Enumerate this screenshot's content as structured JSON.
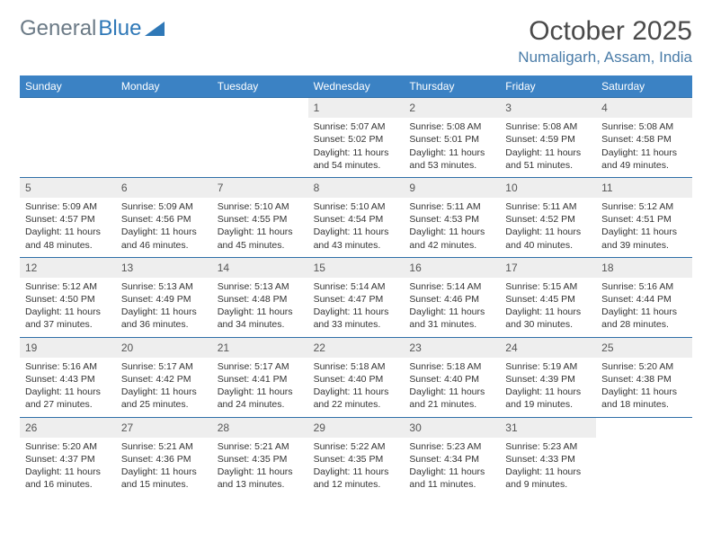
{
  "logo": {
    "text1": "General",
    "text2": "Blue"
  },
  "title": "October 2025",
  "location": "Numaligarh, Assam, India",
  "colors": {
    "header_bg": "#3b82c4",
    "header_text": "#ffffff",
    "daynum_bg": "#eeeeee",
    "daynum_border": "#2f6fa8",
    "logo_gray": "#6b7a86",
    "logo_blue": "#2f78b7",
    "location_color": "#4a7ca8",
    "title_color": "#4a4a4a",
    "text_color": "#333333"
  },
  "day_names": [
    "Sunday",
    "Monday",
    "Tuesday",
    "Wednesday",
    "Thursday",
    "Friday",
    "Saturday"
  ],
  "weeks": [
    [
      null,
      null,
      null,
      {
        "n": "1",
        "sr": "5:07 AM",
        "ss": "5:02 PM",
        "dl": "11 hours and 54 minutes."
      },
      {
        "n": "2",
        "sr": "5:08 AM",
        "ss": "5:01 PM",
        "dl": "11 hours and 53 minutes."
      },
      {
        "n": "3",
        "sr": "5:08 AM",
        "ss": "4:59 PM",
        "dl": "11 hours and 51 minutes."
      },
      {
        "n": "4",
        "sr": "5:08 AM",
        "ss": "4:58 PM",
        "dl": "11 hours and 49 minutes."
      }
    ],
    [
      {
        "n": "5",
        "sr": "5:09 AM",
        "ss": "4:57 PM",
        "dl": "11 hours and 48 minutes."
      },
      {
        "n": "6",
        "sr": "5:09 AM",
        "ss": "4:56 PM",
        "dl": "11 hours and 46 minutes."
      },
      {
        "n": "7",
        "sr": "5:10 AM",
        "ss": "4:55 PM",
        "dl": "11 hours and 45 minutes."
      },
      {
        "n": "8",
        "sr": "5:10 AM",
        "ss": "4:54 PM",
        "dl": "11 hours and 43 minutes."
      },
      {
        "n": "9",
        "sr": "5:11 AM",
        "ss": "4:53 PM",
        "dl": "11 hours and 42 minutes."
      },
      {
        "n": "10",
        "sr": "5:11 AM",
        "ss": "4:52 PM",
        "dl": "11 hours and 40 minutes."
      },
      {
        "n": "11",
        "sr": "5:12 AM",
        "ss": "4:51 PM",
        "dl": "11 hours and 39 minutes."
      }
    ],
    [
      {
        "n": "12",
        "sr": "5:12 AM",
        "ss": "4:50 PM",
        "dl": "11 hours and 37 minutes."
      },
      {
        "n": "13",
        "sr": "5:13 AM",
        "ss": "4:49 PM",
        "dl": "11 hours and 36 minutes."
      },
      {
        "n": "14",
        "sr": "5:13 AM",
        "ss": "4:48 PM",
        "dl": "11 hours and 34 minutes."
      },
      {
        "n": "15",
        "sr": "5:14 AM",
        "ss": "4:47 PM",
        "dl": "11 hours and 33 minutes."
      },
      {
        "n": "16",
        "sr": "5:14 AM",
        "ss": "4:46 PM",
        "dl": "11 hours and 31 minutes."
      },
      {
        "n": "17",
        "sr": "5:15 AM",
        "ss": "4:45 PM",
        "dl": "11 hours and 30 minutes."
      },
      {
        "n": "18",
        "sr": "5:16 AM",
        "ss": "4:44 PM",
        "dl": "11 hours and 28 minutes."
      }
    ],
    [
      {
        "n": "19",
        "sr": "5:16 AM",
        "ss": "4:43 PM",
        "dl": "11 hours and 27 minutes."
      },
      {
        "n": "20",
        "sr": "5:17 AM",
        "ss": "4:42 PM",
        "dl": "11 hours and 25 minutes."
      },
      {
        "n": "21",
        "sr": "5:17 AM",
        "ss": "4:41 PM",
        "dl": "11 hours and 24 minutes."
      },
      {
        "n": "22",
        "sr": "5:18 AM",
        "ss": "4:40 PM",
        "dl": "11 hours and 22 minutes."
      },
      {
        "n": "23",
        "sr": "5:18 AM",
        "ss": "4:40 PM",
        "dl": "11 hours and 21 minutes."
      },
      {
        "n": "24",
        "sr": "5:19 AM",
        "ss": "4:39 PM",
        "dl": "11 hours and 19 minutes."
      },
      {
        "n": "25",
        "sr": "5:20 AM",
        "ss": "4:38 PM",
        "dl": "11 hours and 18 minutes."
      }
    ],
    [
      {
        "n": "26",
        "sr": "5:20 AM",
        "ss": "4:37 PM",
        "dl": "11 hours and 16 minutes."
      },
      {
        "n": "27",
        "sr": "5:21 AM",
        "ss": "4:36 PM",
        "dl": "11 hours and 15 minutes."
      },
      {
        "n": "28",
        "sr": "5:21 AM",
        "ss": "4:35 PM",
        "dl": "11 hours and 13 minutes."
      },
      {
        "n": "29",
        "sr": "5:22 AM",
        "ss": "4:35 PM",
        "dl": "11 hours and 12 minutes."
      },
      {
        "n": "30",
        "sr": "5:23 AM",
        "ss": "4:34 PM",
        "dl": "11 hours and 11 minutes."
      },
      {
        "n": "31",
        "sr": "5:23 AM",
        "ss": "4:33 PM",
        "dl": "11 hours and 9 minutes."
      },
      null
    ]
  ],
  "labels": {
    "sunrise": "Sunrise: ",
    "sunset": "Sunset: ",
    "daylight": "Daylight: "
  }
}
